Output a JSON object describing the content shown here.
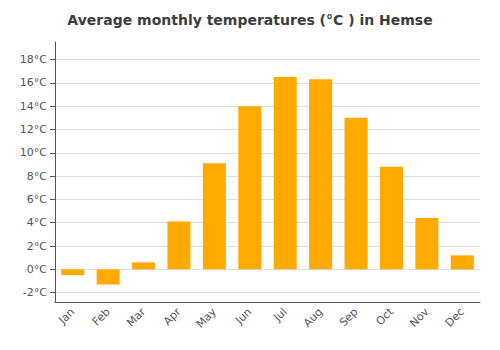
{
  "chart_data": {
    "type": "bar",
    "title": "Average monthly temperatures (°C ) in Hemse",
    "categories": [
      "Jan",
      "Feb",
      "Mar",
      "Apr",
      "May",
      "Jun",
      "Jul",
      "Aug",
      "Sep",
      "Oct",
      "Nov",
      "Dec"
    ],
    "values": [
      -0.5,
      -1.3,
      0.6,
      4.1,
      9.1,
      14.0,
      16.5,
      16.3,
      13.0,
      8.8,
      4.4,
      1.2
    ],
    "color": "#FFAA00",
    "ylim": [
      -2.8,
      19.5
    ],
    "yticks": [
      {
        "value": -2,
        "label": "-2°C"
      },
      {
        "value": 0,
        "label": "0°C"
      },
      {
        "value": 2,
        "label": "2°C"
      },
      {
        "value": 4,
        "label": "4°C"
      },
      {
        "value": 6,
        "label": "6°C"
      },
      {
        "value": 8,
        "label": "8°C"
      },
      {
        "value": 10,
        "label": "10°C"
      },
      {
        "value": 12,
        "label": "12°C"
      },
      {
        "value": 14,
        "label": "14°C"
      },
      {
        "value": 16,
        "label": "16°C"
      },
      {
        "value": 18,
        "label": "18°C"
      }
    ],
    "grid": true
  }
}
